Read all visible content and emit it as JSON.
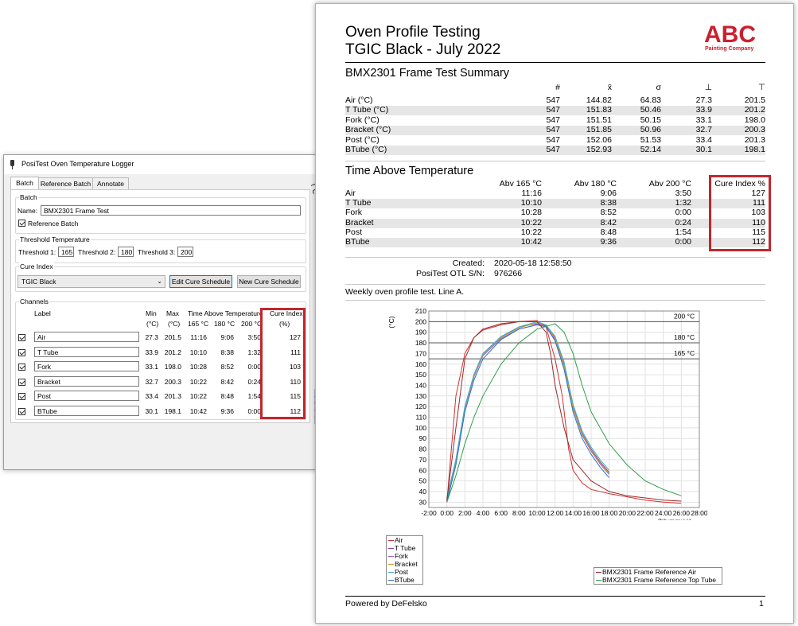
{
  "logger": {
    "title": "PosiTest Oven Temperature Logger",
    "tabs": [
      "Batch",
      "Reference Batch",
      "Annotate"
    ],
    "batch_group": "Batch",
    "name_label": "Name:",
    "name_value": "BMX2301 Frame Test",
    "reference_label": "Reference Batch",
    "threshold_group": "Threshold Temperature",
    "threshold1_label": "Threshold 1:",
    "threshold1_value": "165",
    "threshold2_label": "Threshold 2:",
    "threshold2_value": "180",
    "threshold3_label": "Threshold 3:",
    "threshold3_value": "200",
    "cure_group": "Cure Index",
    "cure_selected": "TGIC Black",
    "edit_button": "Edit Cure Schedule",
    "new_button": "New Cure Schedule",
    "channels_group": "Channels",
    "headers": {
      "label": "Label",
      "min": "Min",
      "max": "Max",
      "tat": "Time Above Temperature",
      "cure": "Cure Index",
      "unit_min": "(°C)",
      "unit_max": "(°C)",
      "t1": "165 °C",
      "t2": "180 °C",
      "t3": "200 °C",
      "unit_cure": "(%)"
    },
    "channels": [
      {
        "label": "Air",
        "min": "27.3",
        "max": "201.5",
        "t1": "11:16",
        "t2": "9:06",
        "t3": "3:50",
        "cure": "127"
      },
      {
        "label": "T Tube",
        "min": "33.9",
        "max": "201.2",
        "t1": "10:10",
        "t2": "8:38",
        "t3": "1:32",
        "cure": "111"
      },
      {
        "label": "Fork",
        "min": "33.1",
        "max": "198.0",
        "t1": "10:28",
        "t2": "8:52",
        "t3": "0:00",
        "cure": "103"
      },
      {
        "label": "Bracket",
        "min": "32.7",
        "max": "200.3",
        "t1": "10:22",
        "t2": "8:42",
        "t3": "0:24",
        "cure": "110"
      },
      {
        "label": "Post",
        "min": "33.4",
        "max": "201.3",
        "t1": "10:22",
        "t2": "8:48",
        "t3": "1:54",
        "cure": "115"
      },
      {
        "label": "BTube",
        "min": "30.1",
        "max": "198.1",
        "t1": "10:42",
        "t2": "9:36",
        "t3": "0:00",
        "cure": "112"
      }
    ],
    "edge_label": "(°C"
  },
  "report": {
    "title_line1": "Oven Profile Testing",
    "title_line2": "TGIC Black - July 2022",
    "logo_text": "ABC",
    "logo_subtext": "Painting Company",
    "summary_title": "BMX2301 Frame Test Summary",
    "summary_headers": [
      "#",
      "x̄",
      "σ",
      "⊥",
      "⊤"
    ],
    "summary_rows": [
      {
        "label": "Air (°C)",
        "n": "547",
        "mean": "144.82",
        "sd": "64.83",
        "min": "27.3",
        "max": "201.5"
      },
      {
        "label": "T Tube (°C)",
        "n": "547",
        "mean": "151.83",
        "sd": "50.46",
        "min": "33.9",
        "max": "201.2"
      },
      {
        "label": "Fork (°C)",
        "n": "547",
        "mean": "151.51",
        "sd": "50.15",
        "min": "33.1",
        "max": "198.0"
      },
      {
        "label": "Bracket (°C)",
        "n": "547",
        "mean": "151.85",
        "sd": "50.96",
        "min": "32.7",
        "max": "200.3"
      },
      {
        "label": "Post (°C)",
        "n": "547",
        "mean": "152.06",
        "sd": "51.53",
        "min": "33.4",
        "max": "201.3"
      },
      {
        "label": "BTube (°C)",
        "n": "547",
        "mean": "152.93",
        "sd": "52.14",
        "min": "30.1",
        "max": "198.1"
      }
    ],
    "tat_title": "Time Above Temperature",
    "tat_headers": [
      "Abv 165 °C",
      "Abv 180 °C",
      "Abv 200 °C",
      "Cure Index %"
    ],
    "tat_rows": [
      {
        "label": "Air",
        "a": "11:16",
        "b": "9:06",
        "c": "3:50",
        "cure": "127"
      },
      {
        "label": "T Tube",
        "a": "10:10",
        "b": "8:38",
        "c": "1:32",
        "cure": "111"
      },
      {
        "label": "Fork",
        "a": "10:28",
        "b": "8:52",
        "c": "0:00",
        "cure": "103"
      },
      {
        "label": "Bracket",
        "a": "10:22",
        "b": "8:42",
        "c": "0:24",
        "cure": "110"
      },
      {
        "label": "Post",
        "a": "10:22",
        "b": "8:48",
        "c": "1:54",
        "cure": "115"
      },
      {
        "label": "BTube",
        "a": "10:42",
        "b": "9:36",
        "c": "0:00",
        "cure": "112"
      }
    ],
    "created_label": "Created:",
    "created_value": "2020-05-18 12:58:50",
    "serial_label": "PosiTest OTL S/N:",
    "serial_value": "976266",
    "note": "Weekly oven profile test. Line A.",
    "footer_left": "Powered by DeFelsko",
    "footer_right": "1"
  },
  "chart_data": {
    "type": "line",
    "ylabel": "(°C)",
    "xlabel": "(hh:mm:ss)",
    "xlim": [
      -2,
      28
    ],
    "ylim": [
      25,
      210
    ],
    "x_ticks": [
      "-2:00",
      "0:00",
      "2:00",
      "4:00",
      "6:00",
      "8:00",
      "10:00",
      "12:00",
      "14:00",
      "16:00",
      "18:00",
      "20:00",
      "22:00",
      "24:00",
      "26:00",
      "28:00"
    ],
    "y_ticks": [
      30,
      40,
      50,
      60,
      70,
      80,
      90,
      100,
      110,
      120,
      130,
      140,
      150,
      160,
      170,
      180,
      190,
      200,
      210
    ],
    "thresholds": [
      {
        "value": 200,
        "label": "200 °C"
      },
      {
        "value": 180,
        "label": "180 °C"
      },
      {
        "value": 165,
        "label": "165 °C"
      }
    ],
    "series": [
      {
        "name": "Air",
        "color": "#d03030",
        "points": [
          [
            0,
            30
          ],
          [
            0.5,
            80
          ],
          [
            1,
            130
          ],
          [
            2,
            170
          ],
          [
            3,
            185
          ],
          [
            4,
            192
          ],
          [
            6,
            197
          ],
          [
            8,
            200
          ],
          [
            10,
            201
          ],
          [
            11,
            195
          ],
          [
            11.5,
            180
          ],
          [
            12,
            165
          ],
          [
            12.8,
            130
          ],
          [
            13.5,
            80
          ],
          [
            14,
            60
          ],
          [
            15,
            48
          ],
          [
            16,
            42
          ],
          [
            18,
            38
          ],
          [
            20,
            35
          ],
          [
            22,
            32
          ],
          [
            24,
            30
          ],
          [
            26,
            29
          ]
        ]
      },
      {
        "name": "T Tube",
        "color": "#8a3d9e",
        "points": [
          [
            0,
            34
          ],
          [
            1,
            70
          ],
          [
            2,
            120
          ],
          [
            3,
            150
          ],
          [
            4,
            170
          ],
          [
            6,
            185
          ],
          [
            8,
            195
          ],
          [
            10,
            198
          ],
          [
            11,
            196
          ],
          [
            12,
            185
          ],
          [
            13,
            160
          ],
          [
            14,
            120
          ],
          [
            15,
            95
          ],
          [
            16,
            80
          ],
          [
            17,
            68
          ],
          [
            18,
            58
          ]
        ]
      },
      {
        "name": "Fork",
        "color": "#a060c0",
        "points": [
          [
            0,
            33
          ],
          [
            1,
            68
          ],
          [
            2,
            118
          ],
          [
            3,
            148
          ],
          [
            4,
            168
          ],
          [
            6,
            184
          ],
          [
            8,
            193
          ],
          [
            10,
            197
          ],
          [
            11,
            195
          ],
          [
            12,
            183
          ],
          [
            13,
            158
          ],
          [
            14,
            118
          ],
          [
            15,
            93
          ],
          [
            16,
            78
          ],
          [
            17,
            66
          ],
          [
            18,
            56
          ]
        ]
      },
      {
        "name": "Bracket",
        "color": "#c9a020",
        "points": [
          [
            0,
            33
          ],
          [
            1,
            69
          ],
          [
            2,
            119
          ],
          [
            3,
            149
          ],
          [
            4,
            169
          ],
          [
            6,
            185
          ],
          [
            8,
            194
          ],
          [
            10,
            199
          ],
          [
            11,
            197
          ],
          [
            12,
            184
          ],
          [
            13,
            159
          ],
          [
            14,
            119
          ],
          [
            15,
            94
          ],
          [
            16,
            79
          ],
          [
            17,
            67
          ],
          [
            18,
            57
          ]
        ]
      },
      {
        "name": "Post",
        "color": "#3ab0d0",
        "points": [
          [
            0,
            33
          ],
          [
            1,
            70
          ],
          [
            2,
            120
          ],
          [
            3,
            150
          ],
          [
            4,
            170
          ],
          [
            6,
            186
          ],
          [
            8,
            195
          ],
          [
            10,
            200
          ],
          [
            11,
            197
          ],
          [
            12,
            186
          ],
          [
            13,
            162
          ],
          [
            14,
            122
          ],
          [
            15,
            97
          ],
          [
            16,
            82
          ],
          [
            17,
            70
          ],
          [
            18,
            60
          ]
        ]
      },
      {
        "name": "BTube",
        "color": "#2c6fc9",
        "points": [
          [
            0,
            30
          ],
          [
            1,
            65
          ],
          [
            2,
            115
          ],
          [
            3,
            145
          ],
          [
            4,
            165
          ],
          [
            6,
            183
          ],
          [
            8,
            193
          ],
          [
            10,
            197
          ],
          [
            11,
            195
          ],
          [
            12,
            182
          ],
          [
            13,
            155
          ],
          [
            14,
            115
          ],
          [
            15,
            90
          ],
          [
            16,
            75
          ],
          [
            17,
            63
          ],
          [
            18,
            53
          ]
        ]
      },
      {
        "name": "BMX2301 Frame Reference Air",
        "color": "#9a2a2a",
        "points": [
          [
            0,
            32
          ],
          [
            1,
            100
          ],
          [
            2,
            165
          ],
          [
            3,
            185
          ],
          [
            4,
            193
          ],
          [
            6,
            198
          ],
          [
            8,
            200
          ],
          [
            10,
            200
          ],
          [
            11,
            190
          ],
          [
            11.5,
            170
          ],
          [
            12,
            140
          ],
          [
            13,
            100
          ],
          [
            14,
            70
          ],
          [
            16,
            50
          ],
          [
            18,
            40
          ],
          [
            20,
            36
          ],
          [
            22,
            34
          ],
          [
            24,
            32
          ],
          [
            26,
            31
          ]
        ]
      },
      {
        "name": "BMX2301 Frame Reference Top Tube",
        "color": "#2e9e45",
        "points": [
          [
            0,
            30
          ],
          [
            1,
            55
          ],
          [
            2,
            85
          ],
          [
            3,
            110
          ],
          [
            4,
            130
          ],
          [
            6,
            160
          ],
          [
            8,
            180
          ],
          [
            10,
            193
          ],
          [
            12,
            198
          ],
          [
            13,
            190
          ],
          [
            14,
            170
          ],
          [
            15,
            140
          ],
          [
            16,
            115
          ],
          [
            18,
            85
          ],
          [
            20,
            65
          ],
          [
            22,
            50
          ],
          [
            24,
            42
          ],
          [
            26,
            36
          ]
        ]
      }
    ],
    "legend1": [
      "Air",
      "T Tube",
      "Fork",
      "Bracket",
      "Post",
      "BTube"
    ],
    "legend2": [
      "BMX2301 Frame Reference Air",
      "BMX2301 Frame Reference Top Tube"
    ]
  }
}
